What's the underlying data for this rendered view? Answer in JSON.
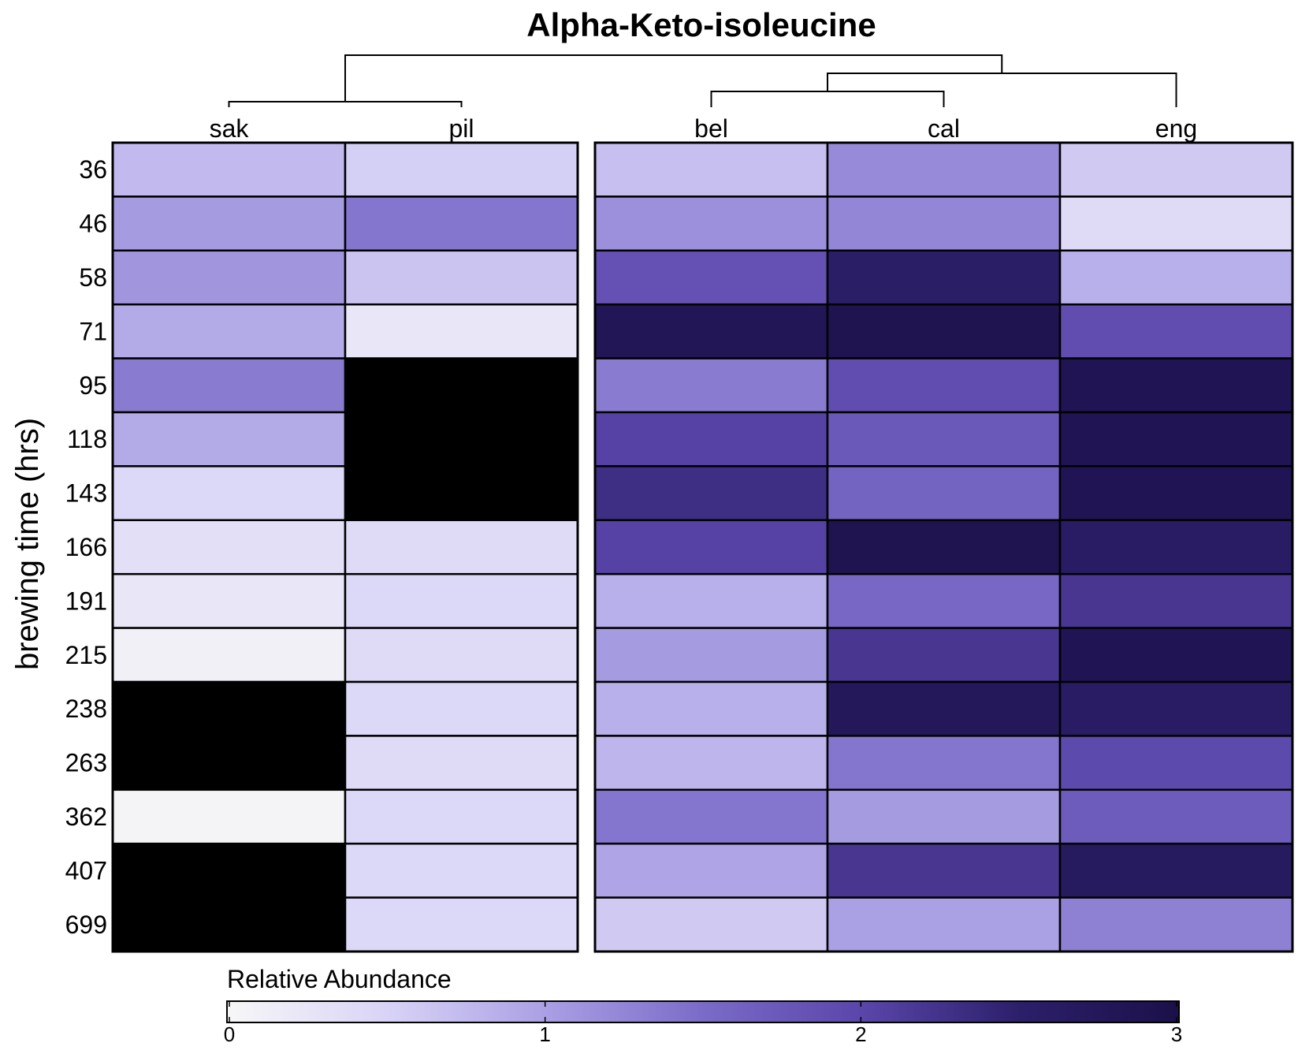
{
  "chart_data": {
    "type": "heatmap",
    "title": "Alpha-Keto-isoleucine",
    "ylabel": "brewing time (hrs)",
    "rows": [
      "36",
      "46",
      "58",
      "71",
      "95",
      "118",
      "143",
      "166",
      "191",
      "215",
      "238",
      "263",
      "362",
      "407",
      "699"
    ],
    "panels": [
      {
        "columns": [
          "sak",
          "pil"
        ]
      },
      {
        "columns": [
          "bel",
          "cal",
          "eng"
        ]
      }
    ],
    "columns": [
      "sak",
      "pil",
      "bel",
      "cal",
      "eng"
    ],
    "values": [
      [
        0.75,
        0.55,
        0.7,
        1.2,
        0.6
      ],
      [
        1.05,
        1.4,
        1.15,
        1.25,
        0.4
      ],
      [
        1.1,
        0.65,
        1.85,
        2.55,
        0.85
      ],
      [
        0.9,
        0.25,
        2.8,
        2.9,
        1.9
      ],
      [
        1.35,
        null,
        1.35,
        1.9,
        2.85
      ],
      [
        0.9,
        null,
        2.05,
        1.75,
        2.85
      ],
      [
        0.45,
        null,
        2.3,
        1.6,
        2.85
      ],
      [
        0.35,
        0.4,
        2.05,
        2.9,
        2.6
      ],
      [
        0.25,
        0.45,
        0.85,
        1.55,
        2.2
      ],
      [
        0.1,
        0.4,
        1.05,
        2.2,
        2.85
      ],
      [
        null,
        0.45,
        0.85,
        2.75,
        2.6
      ],
      [
        null,
        0.4,
        0.8,
        1.4,
        1.95
      ],
      [
        0.05,
        0.45,
        1.4,
        1.05,
        1.7
      ],
      [
        null,
        0.45,
        0.95,
        2.2,
        2.65
      ],
      [
        null,
        0.45,
        0.6,
        1.0,
        1.3
      ]
    ],
    "missing_color": "#000000",
    "colorbar": {
      "title": "Relative Abundance",
      "min": 0,
      "max": 3,
      "ticks": [
        "0",
        "1",
        "2",
        "3"
      ],
      "colors": [
        "#f7f7f7",
        "#d9d4f7",
        "#aaa0e4",
        "#7b6bc8",
        "#5a46aa",
        "#2c1f6a",
        "#1c104a"
      ]
    },
    "dendrogram": "((sak,pil),((bel,cal),eng))"
  }
}
